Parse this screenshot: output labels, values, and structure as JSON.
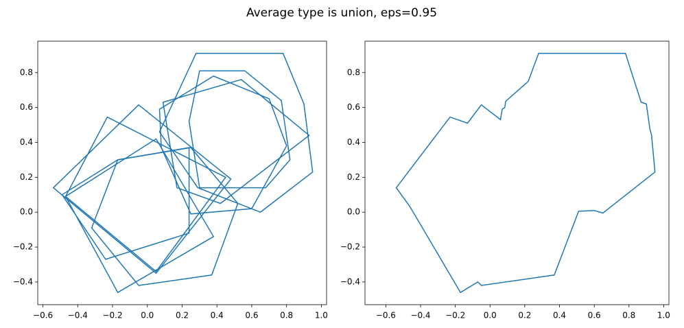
{
  "title": "Average type is union, eps=0.95",
  "chart_data": [
    {
      "type": "line",
      "color": "#1f77b4",
      "closed": true,
      "xlim": [
        -0.63,
        1.03
      ],
      "ylim": [
        -0.53,
        0.98
      ],
      "xticks": [
        {
          "value": -0.6,
          "label": "−0.6"
        },
        {
          "value": -0.4,
          "label": "−0.4"
        },
        {
          "value": -0.2,
          "label": "−0.2"
        },
        {
          "value": 0,
          "label": "0.0"
        },
        0.2,
        0.4,
        0.6,
        0.8,
        {
          "value": 1,
          "label": "1.0"
        }
      ],
      "yticks": [
        {
          "value": -0.4,
          "label": "−0.4"
        },
        {
          "value": -0.2,
          "label": "−0.2"
        },
        {
          "value": 0,
          "label": "0.0"
        },
        0.2,
        0.4,
        0.6,
        0.8
      ],
      "series": [
        {
          "x": [
            0.28,
            0.78,
            0.9,
            0.95,
            0.65,
            0.29,
            0.07
          ],
          "y": [
            0.91,
            0.91,
            0.62,
            0.23,
            0.0,
            0.14,
            0.46
          ]
        },
        {
          "x": [
            0.3,
            0.56,
            0.77,
            0.82,
            0.68,
            0.3,
            0.24
          ],
          "y": [
            0.81,
            0.81,
            0.64,
            0.3,
            0.14,
            0.14,
            0.52
          ]
        },
        {
          "x": [
            0.07,
            0.38,
            0.7,
            0.8,
            0.6,
            0.25,
            0.08
          ],
          "y": [
            0.59,
            0.78,
            0.65,
            0.38,
            0.02,
            -0.01,
            0.37
          ]
        },
        {
          "x": [
            0.54,
            0.93,
            0.42,
            0.17,
            0.09
          ],
          "y": [
            0.76,
            0.44,
            0.05,
            0.14,
            0.63
          ]
        },
        {
          "x": [
            -0.05,
            0.48,
            0.05,
            -0.54
          ],
          "y": [
            0.615,
            0.19,
            -0.35,
            0.14
          ]
        },
        {
          "x": [
            -0.23,
            0.45,
            0.05,
            -0.47
          ],
          "y": [
            0.545,
            0.2,
            -0.34,
            0.09
          ]
        },
        {
          "x": [
            -0.17,
            0.24,
            0.24,
            -0.24,
            -0.49
          ],
          "y": [
            0.3,
            0.37,
            -0.12,
            -0.27,
            0.1
          ]
        },
        {
          "x": [
            -0.05,
            0.37,
            0.52,
            0.25,
            -0.17,
            -0.32
          ],
          "y": [
            -0.42,
            -0.36,
            0.05,
            0.37,
            0.3,
            -0.09
          ]
        },
        {
          "x": [
            -0.17,
            0.38,
            0.05,
            -0.47
          ],
          "y": [
            -0.46,
            -0.14,
            0.42,
            0.09
          ]
        }
      ]
    },
    {
      "type": "line",
      "color": "#1f77b4",
      "closed": true,
      "xlim": [
        -0.72,
        1.03
      ],
      "ylim": [
        -0.53,
        0.98
      ],
      "xticks": [
        {
          "value": -0.6,
          "label": "−0.6"
        },
        {
          "value": -0.4,
          "label": "−0.4"
        },
        {
          "value": -0.2,
          "label": "−0.2"
        },
        {
          "value": 0,
          "label": "0.0"
        },
        0.2,
        0.4,
        0.6,
        0.8,
        {
          "value": 1,
          "label": "1.0"
        }
      ],
      "yticks": [
        {
          "value": -0.4,
          "label": "−0.4"
        },
        {
          "value": -0.2,
          "label": "−0.2"
        },
        {
          "value": 0,
          "label": "0.0"
        },
        0.2,
        0.4,
        0.6,
        0.8
      ],
      "series": [
        {
          "x": [
            0.28,
            0.78,
            0.87,
            0.9,
            0.92,
            0.93,
            0.95,
            0.65,
            0.6,
            0.51,
            0.37,
            -0.05,
            -0.07,
            -0.17,
            -0.46,
            -0.54,
            -0.23,
            -0.13,
            -0.05,
            0.06,
            0.07,
            0.085,
            0.09,
            0.22
          ],
          "y": [
            0.91,
            0.91,
            0.63,
            0.62,
            0.48,
            0.44,
            0.23,
            -0.005,
            0.01,
            0.005,
            -0.36,
            -0.42,
            -0.4,
            -0.46,
            0.03,
            0.14,
            0.545,
            0.51,
            0.615,
            0.53,
            0.59,
            0.6,
            0.635,
            0.75
          ]
        }
      ]
    }
  ]
}
